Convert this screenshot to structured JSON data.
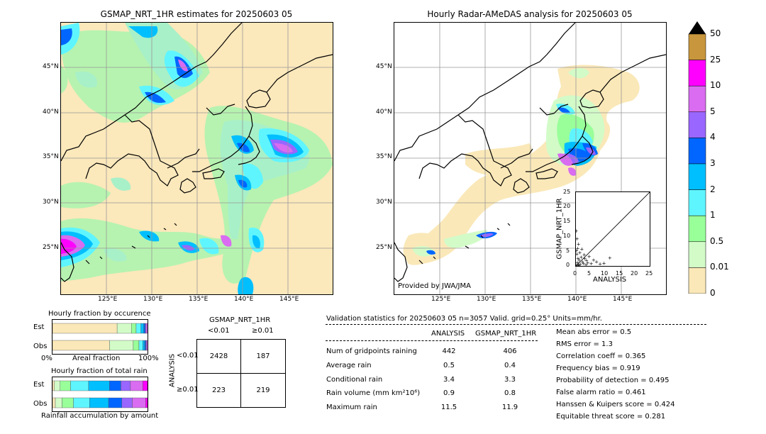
{
  "left_map": {
    "title": "GSMAP_NRT_1HR estimates for 20250603 05",
    "lat_labels": [
      "45°N",
      "40°N",
      "35°N",
      "30°N",
      "25°N"
    ],
    "lon_labels": [
      "125°E",
      "130°E",
      "135°E",
      "140°E",
      "145°E"
    ]
  },
  "right_map": {
    "title": "Hourly Radar-AMeDAS analysis for 20250603 05",
    "lat_labels": [
      "45°N",
      "40°N",
      "35°N",
      "30°N",
      "25°N"
    ],
    "lon_labels": [
      "125°E",
      "130°E",
      "135°E",
      "140°E",
      "145°E"
    ],
    "credit": "Provided by JWA/JMA"
  },
  "scatter_inset": {
    "xlabel": "ANALYSIS",
    "ylabel": "GSMAP_NRT_1HR",
    "ticks": [
      "0",
      "5",
      "10",
      "15",
      "20",
      "25"
    ]
  },
  "colorbar": {
    "labels": [
      "50",
      "25",
      "10",
      "5",
      "4",
      "3",
      "2",
      "1",
      "0.5",
      "0.01",
      "0"
    ],
    "colors": [
      "#c8963c",
      "#ff00ff",
      "#d96cf0",
      "#9966ff",
      "#0066ff",
      "#00bfff",
      "#5ff5ff",
      "#99ff99",
      "#d2fbc8",
      "#fae8b8"
    ],
    "extend_color": "#000000"
  },
  "fraction_occurrence": {
    "title": "Hourly fraction by occurence",
    "row_labels": [
      "Est",
      "Obs"
    ],
    "x_left": "0%",
    "x_mid": "Areal fraction",
    "x_right": "100%"
  },
  "fraction_total": {
    "title": "Hourly fraction of total rain",
    "row_labels": [
      "Est",
      "Obs"
    ],
    "footer": "Rainfall accumulation by amount"
  },
  "contingency": {
    "title": "GSMAP_NRT_1HR",
    "col_labels": [
      "<0.01",
      "≥0.01"
    ],
    "row_axis": "ANALYSIS",
    "row_labels": [
      "<0.01",
      "≥0.01"
    ],
    "cells": [
      [
        "2428",
        "187"
      ],
      [
        "223",
        "219"
      ]
    ]
  },
  "validation": {
    "header": "Validation statistics for 20250603 05  n=3057 Valid. grid=0.25° Units=mm/hr.",
    "col_analysis": "ANALYSIS",
    "col_gsmap": "GSMAP_NRT_1HR",
    "rows": [
      {
        "label": "Num of gridpoints raining",
        "analysis": "442",
        "gsmap": "406"
      },
      {
        "label": "Average rain",
        "analysis": "0.5",
        "gsmap": "0.4"
      },
      {
        "label": "Conditional rain",
        "analysis": "3.4",
        "gsmap": "3.3"
      },
      {
        "label": "Rain volume (mm km²10⁶)",
        "analysis": "0.9",
        "gsmap": "0.8"
      },
      {
        "label": "Maximum rain",
        "analysis": "11.5",
        "gsmap": "11.9"
      }
    ],
    "scores": [
      "Mean abs error =    0.5",
      "RMS error =    1.3",
      "Correlation coeff =  0.365",
      "Frequency bias =  0.919",
      "Probability of detection =  0.495",
      "False alarm ratio =  0.461",
      "Hanssen & Kuipers score =  0.424",
      "Equitable threat score =  0.281"
    ]
  },
  "chart_data": [
    {
      "type": "heatmap",
      "title": "GSMAP_NRT_1HR estimates for 20250603 05",
      "xlabel": "",
      "ylabel": "",
      "x_ticks": [
        "125°E",
        "130°E",
        "135°E",
        "140°E",
        "145°E"
      ],
      "y_ticks": [
        "45°N",
        "40°N",
        "35°N",
        "30°N",
        "25°N"
      ],
      "color_scale": [
        "0",
        "0.01",
        "0.5",
        "1",
        "2",
        "3",
        "4",
        "5",
        "10",
        "25",
        "50"
      ],
      "units": "mm/hr"
    },
    {
      "type": "heatmap",
      "title": "Hourly Radar-AMeDAS analysis for 20250603 05",
      "xlabel": "",
      "ylabel": "",
      "x_ticks": [
        "125°E",
        "130°E",
        "135°E",
        "140°E",
        "145°E"
      ],
      "y_ticks": [
        "45°N",
        "40°N",
        "35°N",
        "30°N",
        "25°N"
      ],
      "color_scale": [
        "0",
        "0.01",
        "0.5",
        "1",
        "2",
        "3",
        "4",
        "5",
        "10",
        "25",
        "50"
      ],
      "units": "mm/hr"
    },
    {
      "type": "scatter",
      "xlabel": "ANALYSIS",
      "ylabel": "GSMAP_NRT_1HR",
      "xlim": [
        0,
        25
      ],
      "ylim": [
        0,
        25
      ],
      "points": [
        [
          0.2,
          0.3
        ],
        [
          0.5,
          1.2
        ],
        [
          0.8,
          0.4
        ],
        [
          1.1,
          2.0
        ],
        [
          1.5,
          0.6
        ],
        [
          0.3,
          4.1
        ],
        [
          0.6,
          6.0
        ],
        [
          0.9,
          7.5
        ],
        [
          0.4,
          9.2
        ],
        [
          1.8,
          3.0
        ],
        [
          2.2,
          1.4
        ],
        [
          2.6,
          0.8
        ],
        [
          3.0,
          2.5
        ],
        [
          3.4,
          0.5
        ],
        [
          4.0,
          1.1
        ],
        [
          4.5,
          3.2
        ],
        [
          5.2,
          0.9
        ],
        [
          6.0,
          2.1
        ],
        [
          7.0,
          1.5
        ],
        [
          8.2,
          0.7
        ],
        [
          9.5,
          1.0
        ],
        [
          11.5,
          2.8
        ],
        [
          0.1,
          11.9
        ],
        [
          0.2,
          5.3
        ],
        [
          1.3,
          4.6
        ],
        [
          2.0,
          5.8
        ],
        [
          2.8,
          3.9
        ],
        [
          3.6,
          1.9
        ],
        [
          0.7,
          2.7
        ],
        [
          1.0,
          0.2
        ]
      ]
    },
    {
      "type": "table",
      "title": "GSMAP_NRT_1HR",
      "columns": [
        "<0.01",
        "≥0.01"
      ],
      "rows": [
        "<0.01",
        "≥0.01"
      ],
      "row_axis": "ANALYSIS",
      "values": [
        [
          2428,
          187
        ],
        [
          223,
          219
        ]
      ]
    },
    {
      "type": "bar",
      "title": "Hourly fraction by occurence",
      "categories": [
        "Est",
        "Obs"
      ],
      "series": [
        {
          "values": [
            0.68,
            0.6
          ]
        },
        {
          "values": [
            0.15,
            0.25
          ]
        },
        {
          "values": [
            0.05,
            0.06
          ]
        },
        {
          "values": [
            0.05,
            0.04
          ]
        },
        {
          "values": [
            0.03,
            0.02
          ]
        },
        {
          "values": [
            0.015,
            0.012
          ]
        },
        {
          "values": [
            0.01,
            0.008
          ]
        },
        {
          "values": [
            0.015,
            0.02
          ]
        }
      ]
    },
    {
      "type": "bar",
      "title": "Hourly fraction of total rain",
      "categories": [
        "Est",
        "Obs"
      ],
      "series": [
        {
          "values": [
            0.02,
            0.03
          ]
        },
        {
          "values": [
            0.06,
            0.07
          ]
        },
        {
          "values": [
            0.11,
            0.12
          ]
        },
        {
          "values": [
            0.19,
            0.17
          ]
        },
        {
          "values": [
            0.22,
            0.2
          ]
        },
        {
          "values": [
            0.12,
            0.14
          ]
        },
        {
          "values": [
            0.1,
            0.11
          ]
        },
        {
          "values": [
            0.13,
            0.14
          ]
        },
        {
          "values": [
            0.05,
            0.02
          ]
        }
      ]
    }
  ]
}
